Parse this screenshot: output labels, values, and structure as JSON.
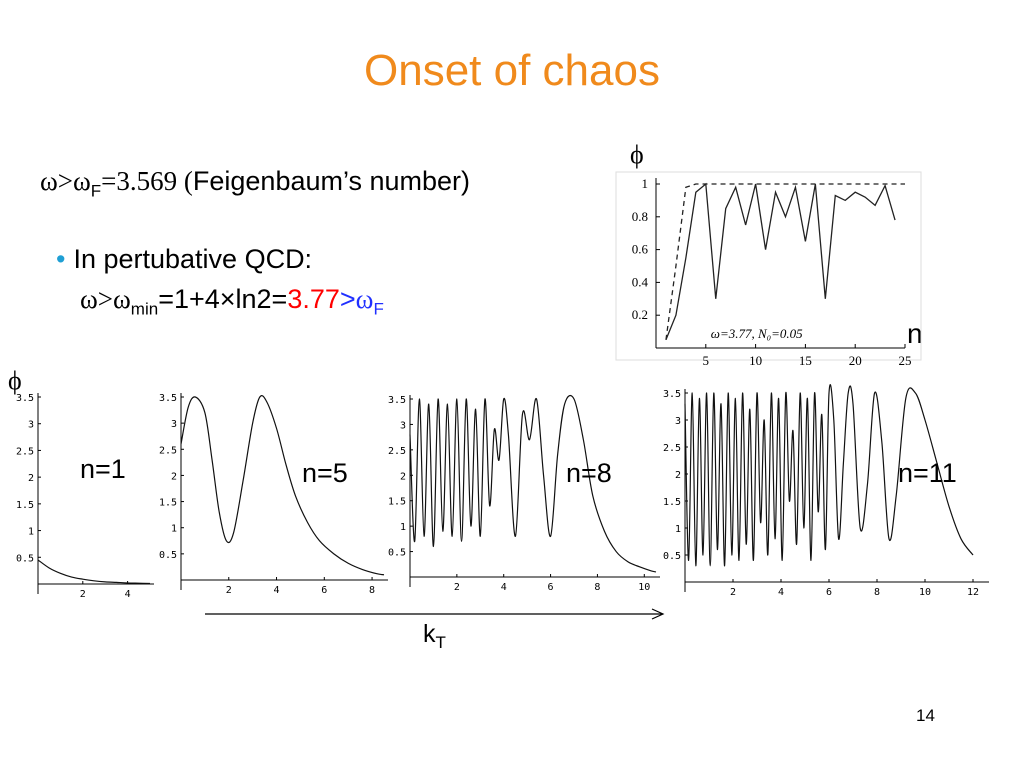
{
  "title": "Onset of chaos",
  "line1": {
    "omega": "ω>ω",
    "sub": "F",
    "value": "=3.569 (",
    "text": "Feigenbaum’s number)"
  },
  "bullet": {
    "dot": "•",
    "text": "In pertubative QCD:"
  },
  "line3": {
    "omega": "ω>ω",
    "sub": "min",
    "mid": "=1+4×ln2=",
    "red": "3.77",
    "blue": "ω",
    "blue_gt": ">",
    "blue_sub": "F"
  },
  "phi_symbol": "ϕ",
  "page_number": "14",
  "axis_kt": {
    "k": "k",
    "sub": "T"
  },
  "chart_data": [
    {
      "type": "line",
      "annotation": "ω=3.77, N₀=0.05",
      "xlabel": "n",
      "ylabel": "ϕ",
      "xlim": [
        0,
        25
      ],
      "ylim": [
        0,
        1
      ],
      "x_ticks": [
        "5",
        "10",
        "15",
        "20",
        "25"
      ],
      "y_ticks": [
        "0.2",
        "0.4",
        "0.6",
        "0.8",
        "1"
      ],
      "series": [
        {
          "x": [
            1,
            2,
            3,
            4,
            5,
            6,
            7,
            8,
            9,
            10,
            11,
            12,
            13,
            14,
            15,
            16,
            17,
            18,
            19,
            20,
            21,
            22,
            23,
            24
          ],
          "y": [
            0.05,
            0.2,
            0.55,
            0.95,
            1.0,
            0.3,
            0.85,
            0.98,
            0.75,
            1.0,
            0.6,
            0.95,
            0.8,
            0.98,
            0.65,
            1.0,
            0.3,
            0.93,
            0.9,
            0.95,
            0.92,
            0.87,
            0.99,
            0.78
          ]
        },
        {
          "x": [
            1,
            2,
            3,
            4,
            5,
            25
          ],
          "y": [
            0.05,
            0.5,
            0.98,
            1.0,
            1.0,
            1.0
          ],
          "style": "dashed"
        }
      ]
    },
    {
      "type": "line",
      "label": "n=1",
      "xlim": [
        0,
        5
      ],
      "ylim": [
        0,
        3.5
      ],
      "x_ticks": [
        "2",
        "4"
      ],
      "y_ticks": [
        "0.5",
        "1",
        "1.5",
        "2",
        "2.5",
        "3",
        "3.5"
      ],
      "x": [
        0,
        0.5,
        1,
        1.5,
        2,
        2.5,
        3,
        3.5,
        4,
        4.5,
        5
      ],
      "y": [
        0.45,
        0.3,
        0.2,
        0.13,
        0.09,
        0.06,
        0.04,
        0.03,
        0.02,
        0.015,
        0.01
      ]
    },
    {
      "type": "line",
      "label": "n=5",
      "xlim": [
        0,
        8.5
      ],
      "ylim": [
        0,
        3.5
      ],
      "x_ticks": [
        "2",
        "4",
        "6",
        "8"
      ],
      "y_ticks": [
        "0.5",
        "1",
        "1.5",
        "2",
        "2.5",
        "3",
        "3.5"
      ],
      "x": [
        0,
        0.3,
        0.6,
        1,
        1.3,
        1.6,
        1.9,
        2.2,
        2.6,
        3,
        3.3,
        3.6,
        4,
        4.4,
        4.8,
        5.3,
        5.8,
        6.4,
        7,
        7.6,
        8.2,
        8.5
      ],
      "y": [
        2.6,
        3.3,
        3.5,
        3.2,
        2.3,
        1.3,
        0.75,
        0.9,
        1.9,
        3.0,
        3.5,
        3.4,
        2.9,
        2.2,
        1.6,
        1.1,
        0.75,
        0.5,
        0.32,
        0.2,
        0.12,
        0.1
      ]
    },
    {
      "type": "line",
      "label": "n=8",
      "xlim": [
        0,
        10.5
      ],
      "ylim": [
        0,
        3.5
      ],
      "x_ticks": [
        "2",
        "4",
        "6",
        "8",
        "10"
      ],
      "y_ticks": [
        "0.5",
        "1",
        "1.5",
        "2",
        "2.5",
        "3",
        "3.5"
      ],
      "x": [
        0,
        0.2,
        0.4,
        0.6,
        0.8,
        1,
        1.2,
        1.4,
        1.6,
        1.8,
        2,
        2.2,
        2.4,
        2.6,
        2.8,
        3,
        3.2,
        3.4,
        3.6,
        3.8,
        4,
        4.2,
        4.5,
        4.8,
        5.1,
        5.4,
        5.7,
        6,
        6.3,
        6.6,
        7,
        7.4,
        7.8,
        8.3,
        8.8,
        9.3,
        9.8,
        10.3,
        10.5
      ],
      "y": [
        2.8,
        0.7,
        3.5,
        0.8,
        3.4,
        0.6,
        3.5,
        0.9,
        3.4,
        0.8,
        3.5,
        0.7,
        3.5,
        1.0,
        3.3,
        0.8,
        3.5,
        1.4,
        2.9,
        2.3,
        3.5,
        2.8,
        0.8,
        3.2,
        2.7,
        3.5,
        2.0,
        0.8,
        2.4,
        3.4,
        3.5,
        2.7,
        1.6,
        0.9,
        0.5,
        0.3,
        0.2,
        0.12,
        0.1
      ]
    },
    {
      "type": "line",
      "label": "n=11",
      "xlim": [
        0,
        12.5
      ],
      "ylim": [
        0,
        3.5
      ],
      "x_ticks": [
        "2",
        "4",
        "6",
        "8",
        "10",
        "12"
      ],
      "y_ticks": [
        "0.5",
        "1",
        "1.5",
        "2",
        "2.5",
        "3",
        "3.5"
      ],
      "x": [
        0,
        0.15,
        0.3,
        0.45,
        0.6,
        0.75,
        0.9,
        1.05,
        1.2,
        1.35,
        1.5,
        1.65,
        1.8,
        1.95,
        2.1,
        2.25,
        2.4,
        2.55,
        2.7,
        2.85,
        3,
        3.15,
        3.3,
        3.45,
        3.6,
        3.75,
        3.9,
        4.05,
        4.2,
        4.35,
        4.5,
        4.65,
        4.8,
        4.95,
        5.1,
        5.25,
        5.4,
        5.55,
        5.7,
        5.85,
        6,
        6.2,
        6.4,
        6.6,
        6.8,
        7,
        7.3,
        7.6,
        7.9,
        8.2,
        8.5,
        8.8,
        9.2,
        9.6,
        10,
        10.5,
        11,
        11.5,
        12
      ],
      "y": [
        3.3,
        0.4,
        3.5,
        0.3,
        3.4,
        0.5,
        3.5,
        0.3,
        3.5,
        0.6,
        3.3,
        0.3,
        3.5,
        0.5,
        3.4,
        0.4,
        3.5,
        0.7,
        3.2,
        0.4,
        3.5,
        1.1,
        3.0,
        0.5,
        3.5,
        0.8,
        3.4,
        0.4,
        3.5,
        1.5,
        2.8,
        0.7,
        3.5,
        1.0,
        3.4,
        0.4,
        3.5,
        1.3,
        3.1,
        0.6,
        3.5,
        3.0,
        0.8,
        2.2,
        3.5,
        3.3,
        1.0,
        1.8,
        3.5,
        2.6,
        0.8,
        1.6,
        3.4,
        3.5,
        3.0,
        2.2,
        1.4,
        0.8,
        0.5
      ]
    }
  ],
  "n_labels": [
    "n=1",
    "n=5",
    "n=8",
    "n=11"
  ]
}
